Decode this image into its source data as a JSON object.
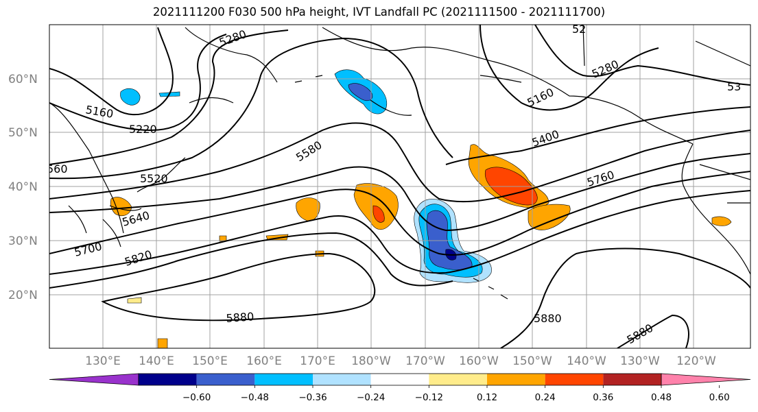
{
  "title": "2021111200 F030 500 hPa height, IVT Landfall PC (2021111500 - 2021111700)",
  "axes": {
    "lat_ticks": [
      "60°N",
      "50°N",
      "40°N",
      "30°N",
      "20°N"
    ],
    "lon_ticks": [
      "130°E",
      "140°E",
      "150°E",
      "160°E",
      "170°E",
      "180°W",
      "170°W",
      "160°W",
      "150°W",
      "140°W",
      "130°W",
      "120°W"
    ]
  },
  "contour_labels": [
    "5280",
    "5160",
    "5220",
    "5580",
    "5520",
    "5640",
    "5700",
    "5820",
    "5880",
    "5280",
    "5160",
    "5400",
    "5760",
    "5880",
    "5880",
    "53",
    "560",
    "52"
  ],
  "colorbar": {
    "ticks": [
      "−0.60",
      "−0.48",
      "−0.36",
      "−0.24",
      "−0.12",
      "0.12",
      "0.24",
      "0.36",
      "0.48",
      "0.60"
    ],
    "colors": [
      "#9932cc",
      "#00008b",
      "#3a5fcd",
      "#00bfff",
      "#b0e2ff",
      "#ffffff",
      "#ffec8b",
      "#ffa500",
      "#ff4500",
      "#b22222",
      "#ff82ab"
    ]
  },
  "chart_data": {
    "type": "map",
    "title": "2021111200 F030 500 hPa height, IVT Landfall PC (2021111500 - 2021111700)",
    "levels": [
      -0.6,
      -0.48,
      -0.36,
      -0.24,
      -0.12,
      0.12,
      0.24,
      0.36,
      0.48,
      0.6
    ],
    "contour_values": [
      5160,
      5220,
      5280,
      5400,
      5520,
      5580,
      5640,
      5700,
      5760,
      5820,
      5880
    ]
  }
}
